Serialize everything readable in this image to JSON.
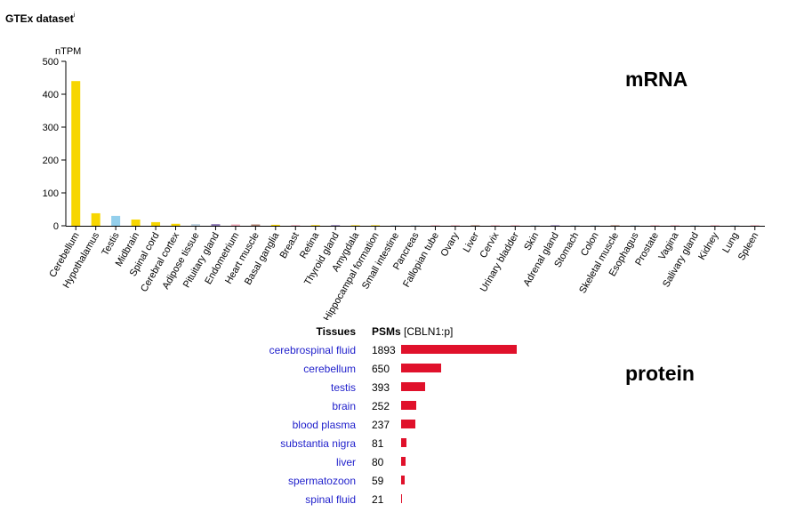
{
  "header": {
    "title": "GTEx dataset",
    "info_marker": "i"
  },
  "labels": {
    "mrna": "mRNA",
    "protein": "protein"
  },
  "chart_data": {
    "type": "bar",
    "ylabel": "nTPM",
    "ylim": [
      0,
      500
    ],
    "yticks": [
      0,
      100,
      200,
      300,
      400,
      500
    ],
    "categories": [
      "Cerebellum",
      "Hypothalamus",
      "Testis",
      "Midbrain",
      "Spinal cord",
      "Cerebral cortex",
      "Adipose tissue",
      "Pituitary gland",
      "Endometrium",
      "Heart muscle",
      "Basal ganglia",
      "Breast",
      "Retina",
      "Thyroid gland",
      "Amygdala",
      "Hippocampal formation",
      "Small intestine",
      "Pancreas",
      "Fallopian tube",
      "Ovary",
      "Liver",
      "Cervix",
      "Urinary bladder",
      "Skin",
      "Adrenal gland",
      "Stomach",
      "Colon",
      "Skeletal muscle",
      "Esophagus",
      "Prostate",
      "Vagina",
      "Salivary gland",
      "Kidney",
      "Lung",
      "Spleen"
    ],
    "values": [
      440,
      38,
      30,
      19,
      11,
      6,
      5,
      5,
      4,
      4,
      3,
      2,
      2,
      2,
      1.5,
      1.5,
      1.5,
      1,
      1,
      1,
      0.5,
      0.5,
      0.5,
      0.5,
      0.5,
      0.5,
      0.5,
      0.3,
      0.3,
      0.3,
      0.3,
      0.3,
      0.2,
      0.2,
      0.2
    ],
    "colors": [
      "#f7d600",
      "#f7d600",
      "#93cfec",
      "#f7d600",
      "#f7d600",
      "#f7d600",
      "#bcd0e0",
      "#8a76b4",
      "#f1a8b8",
      "#b08070",
      "#f7d600",
      "#f1a8b8",
      "#f7d600",
      "#8a76b4",
      "#f7d600",
      "#f7d600",
      "#bcd0e0",
      "#bcd0e0",
      "#f1a8b8",
      "#f1a8b8",
      "#b08070",
      "#f1a8b8",
      "#f1a8b8",
      "#bcd0e0",
      "#8a76b4",
      "#bcd0e0",
      "#bcd0e0",
      "#b08070",
      "#bcd0e0",
      "#f1a8b8",
      "#f1a8b8",
      "#bcd0e0",
      "#f1a8b8",
      "#bcd0e0",
      "#f1a8b8"
    ]
  },
  "protein": {
    "header_tissues": "Tissues",
    "header_psms": "PSMs",
    "header_protein": "[CBLN1:p]",
    "max_psm": 1893,
    "rows": [
      {
        "tissue": "cerebrospinal fluid",
        "psms": 1893
      },
      {
        "tissue": "cerebellum",
        "psms": 650
      },
      {
        "tissue": "testis",
        "psms": 393
      },
      {
        "tissue": "brain",
        "psms": 252
      },
      {
        "tissue": "blood plasma",
        "psms": 237
      },
      {
        "tissue": "substantia nigra",
        "psms": 81
      },
      {
        "tissue": "liver",
        "psms": 80
      },
      {
        "tissue": "spermatozoon",
        "psms": 59
      },
      {
        "tissue": "spinal fluid",
        "psms": 21
      }
    ]
  }
}
